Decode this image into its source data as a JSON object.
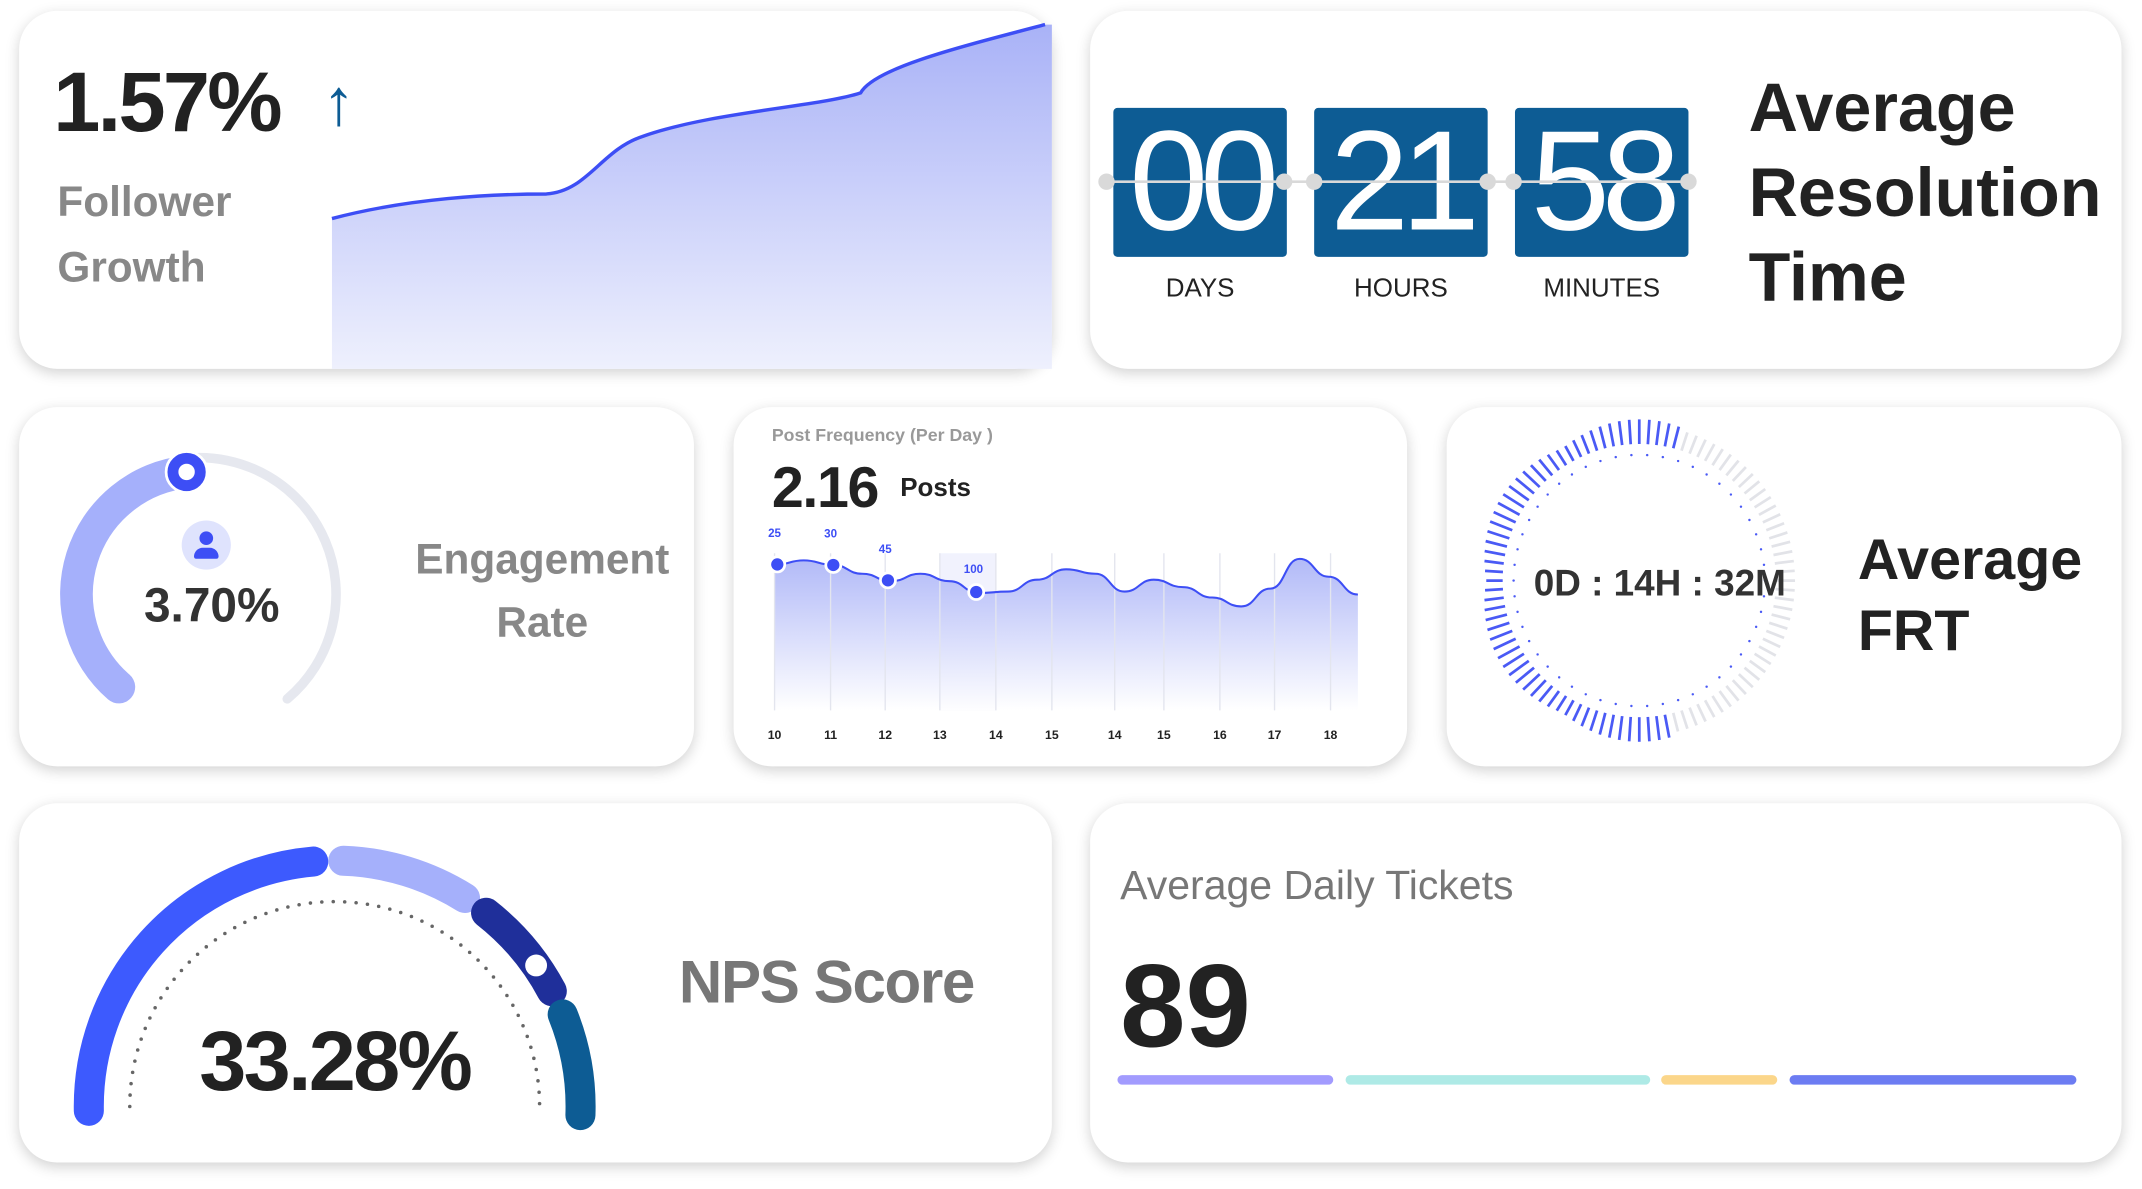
{
  "follower_growth": {
    "value": "1.57%",
    "trend_icon": "arrow-up-icon",
    "label_line1": "Follower",
    "label_line2": "Growth",
    "accent": "#3d4ef5"
  },
  "resolution_time": {
    "units": [
      {
        "value": "00",
        "label": "DAYS"
      },
      {
        "value": "21",
        "label": "HOURS"
      },
      {
        "value": "58",
        "label": "MINUTES"
      }
    ],
    "title_line1": "Average",
    "title_line2": "Resolution",
    "title_line3": "Time",
    "box_color": "#0d5c94"
  },
  "engagement": {
    "value": "3.70%",
    "label_line1": "Engagement",
    "label_line2": "Rate",
    "icon": "user-icon",
    "level_percent": 37
  },
  "post_frequency": {
    "title": "Post Frequency (Per Day )",
    "value": "2.16",
    "unit": "Posts"
  },
  "chart_data": {
    "type": "area",
    "categories": [
      "10",
      "11",
      "12",
      "13",
      "14",
      "15",
      "14",
      "15",
      "16",
      "17",
      "18"
    ],
    "line_values": [
      98,
      101,
      98,
      92,
      87,
      92,
      87,
      79,
      80,
      88,
      95,
      92,
      80,
      88,
      83,
      76,
      70,
      82,
      102,
      90,
      78
    ],
    "ylim": [
      0,
      115
    ],
    "markers": [
      {
        "x_index": 0,
        "label": "25"
      },
      {
        "x_index": 1,
        "label": "30"
      },
      {
        "x_index": 2,
        "label": "45"
      },
      {
        "x_index": 3.6,
        "label": "100"
      }
    ],
    "grid": true,
    "color": "#3d4ef5"
  },
  "frt": {
    "value": "0D : 14H : 32M",
    "title_line1": "Average",
    "title_line2": "FRT"
  },
  "nps": {
    "value": "33.28%",
    "label": "NPS Score",
    "segment_colors": [
      "#3d5afe",
      "#a5b0fb",
      "#1f2f9a",
      "#0d5c94"
    ]
  },
  "tickets": {
    "title": "Average Daily Tickets",
    "value": "89",
    "segment_colors": [
      "#a29bfe",
      "#aeeae6",
      "#fbd68a",
      "#6c7cf2"
    ]
  }
}
